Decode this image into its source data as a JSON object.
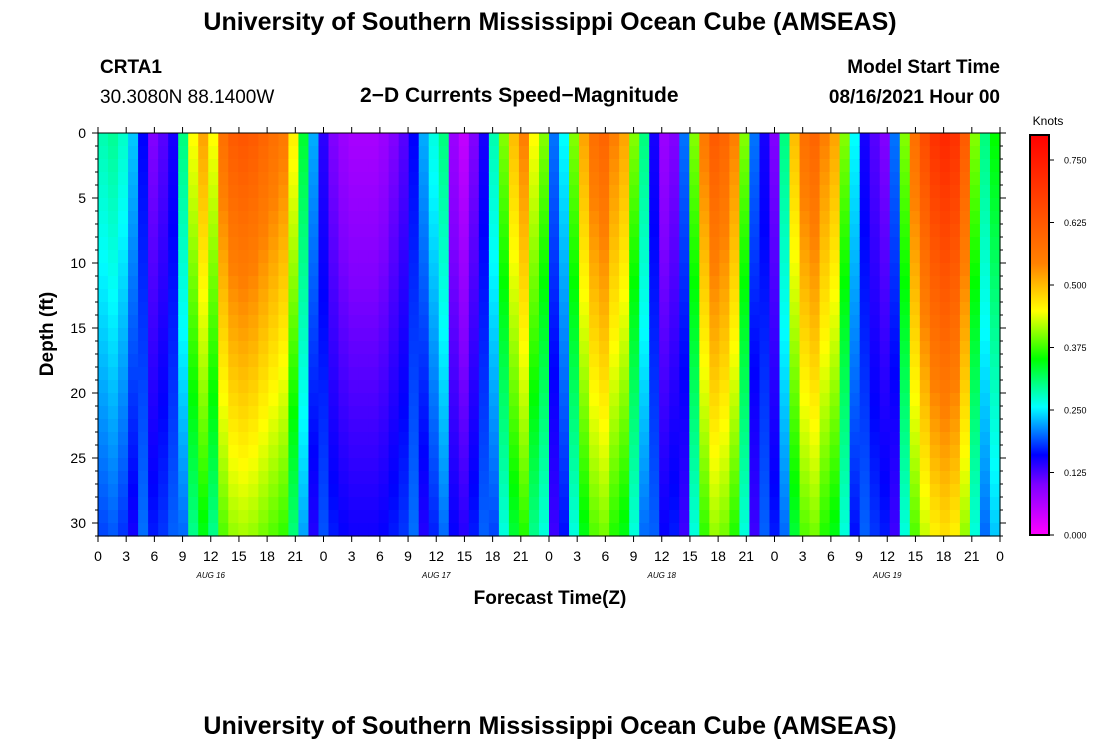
{
  "page": {
    "title_top": "University of Southern Mississippi Ocean Cube (AMSEAS)",
    "title_bottom": "University of Southern Mississippi Ocean Cube (AMSEAS)",
    "station_id": "CRTA1",
    "station_coords": "30.3080N  88.1400W",
    "chart_title": "2−D Currents Speed−Magnitude",
    "model_label": "Model Start Time",
    "model_time": "08/16/2021 Hour 00"
  },
  "chart_data": {
    "type": "heatmap",
    "title": "2-D Currents Speed-Magnitude",
    "xlabel": "Forecast Time(Z)",
    "ylabel": "Depth (ft)",
    "colorbar_label": "Knots",
    "x_range_hours": [
      0,
      96
    ],
    "ylim": [
      0,
      31
    ],
    "y_ticks": [
      0,
      5,
      10,
      15,
      20,
      25,
      30
    ],
    "x_tick_labels": [
      "0",
      "3",
      "6",
      "9",
      "12",
      "15",
      "18",
      "21",
      "0",
      "3",
      "6",
      "9",
      "12",
      "15",
      "18",
      "21",
      "0",
      "3",
      "6",
      "9",
      "12",
      "15",
      "18",
      "21",
      "0",
      "3",
      "6",
      "9",
      "12",
      "15",
      "18",
      "21",
      "0"
    ],
    "day_labels": [
      "AUG 16",
      "AUG 17",
      "AUG 18",
      "AUG 19"
    ],
    "colorbar_ticks": [
      "0.000",
      "0.125",
      "0.250",
      "0.375",
      "0.500",
      "0.625",
      "0.750"
    ],
    "colorbar_range": [
      0,
      0.8
    ],
    "surface_speed_knots": [
      0.28,
      0.29,
      0.27,
      0.23,
      0.16,
      0.1,
      0.12,
      0.15,
      0.3,
      0.45,
      0.52,
      0.45,
      0.58,
      0.62,
      0.63,
      0.62,
      0.6,
      0.58,
      0.56,
      0.46,
      0.33,
      0.22,
      0.14,
      0.1,
      0.08,
      0.07,
      0.07,
      0.07,
      0.08,
      0.1,
      0.12,
      0.16,
      0.22,
      0.26,
      0.3,
      0.08,
      0.05,
      0.1,
      0.15,
      0.28,
      0.4,
      0.5,
      0.55,
      0.45,
      0.4,
      0.2,
      0.25,
      0.4,
      0.52,
      0.58,
      0.6,
      0.55,
      0.52,
      0.4,
      0.3,
      0.15,
      0.08,
      0.1,
      0.2,
      0.4,
      0.56,
      0.62,
      0.6,
      0.55,
      0.4,
      0.2,
      0.15,
      0.1,
      0.3,
      0.5,
      0.58,
      0.6,
      0.55,
      0.52,
      0.4,
      0.25,
      0.15,
      0.12,
      0.1,
      0.2,
      0.4,
      0.58,
      0.65,
      0.7,
      0.72,
      0.7,
      0.62,
      0.4,
      0.3,
      0.35
    ]
  }
}
